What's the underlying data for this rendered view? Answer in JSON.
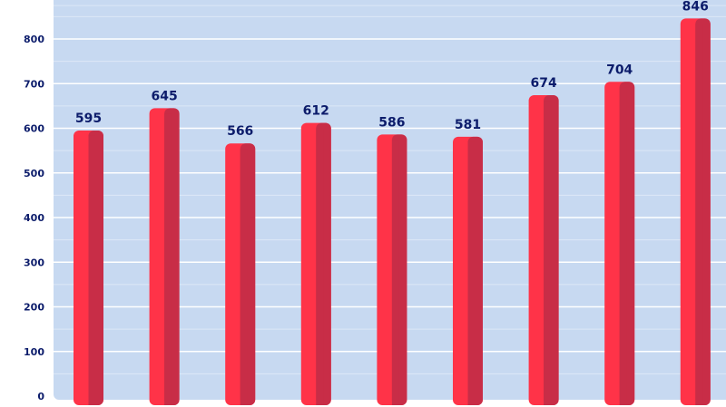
{
  "chart_data": {
    "type": "bar",
    "categories": [
      "",
      "",
      "",
      "",
      "",
      "",
      "",
      "",
      ""
    ],
    "values": [
      595,
      645,
      566,
      612,
      586,
      581,
      674,
      704,
      846
    ],
    "title": "",
    "xlabel": "",
    "ylabel": "",
    "ylim": [
      0,
      860
    ],
    "yticks": [
      "0",
      "100",
      "200",
      "300",
      "400",
      "500",
      "600",
      "700",
      "800"
    ],
    "data_labels": [
      "595",
      "645",
      "566",
      "612",
      "586",
      "581",
      "674",
      "704",
      "846"
    ],
    "grid": true,
    "legend": "none"
  },
  "colors": {
    "plot_background": "#c7d9f1",
    "grid_major": "#ffffff",
    "grid_minor": "#dce7f6",
    "bar_light": "#ff3348",
    "bar_dark": "#c82d47",
    "text": "#0c1c6b"
  }
}
